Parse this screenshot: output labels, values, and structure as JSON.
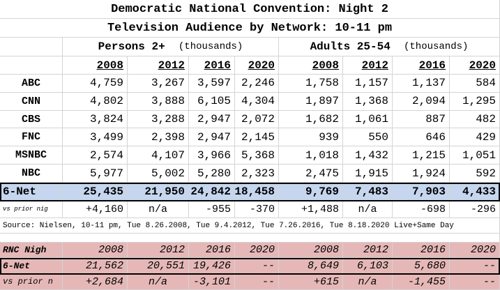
{
  "title1": "Democratic National Convention: Night 2",
  "title2": "Television Audience by Network: 10-11 pm",
  "groups": {
    "persons_label": "Persons 2+",
    "persons_units": "(thousands)",
    "adults_label": "Adults 25-54",
    "adults_units": "(thousands)"
  },
  "years": [
    "2008",
    "2012",
    "2016",
    "2020"
  ],
  "networks": [
    {
      "name": "ABC",
      "p": [
        "4,759",
        "3,267",
        "3,597",
        "2,246"
      ],
      "a": [
        "1,758",
        "1,157",
        "1,137",
        "584"
      ]
    },
    {
      "name": "CNN",
      "p": [
        "4,802",
        "3,888",
        "6,105",
        "4,304"
      ],
      "a": [
        "1,897",
        "1,368",
        "2,094",
        "1,295"
      ]
    },
    {
      "name": "CBS",
      "p": [
        "3,824",
        "3,288",
        "2,947",
        "2,072"
      ],
      "a": [
        "1,682",
        "1,061",
        "887",
        "482"
      ]
    },
    {
      "name": "FNC",
      "p": [
        "3,499",
        "2,398",
        "2,947",
        "2,145"
      ],
      "a": [
        "939",
        "550",
        "646",
        "429"
      ]
    },
    {
      "name": "MSNBC",
      "p": [
        "2,574",
        "4,107",
        "3,966",
        "5,368"
      ],
      "a": [
        "1,018",
        "1,432",
        "1,215",
        "1,051"
      ]
    },
    {
      "name": "NBC",
      "p": [
        "5,977",
        "5,002",
        "5,280",
        "2,323"
      ],
      "a": [
        "2,475",
        "1,915",
        "1,924",
        "592"
      ]
    }
  ],
  "total": {
    "name": "6-Net",
    "p": [
      "25,435",
      "21,950",
      "24,842",
      "18,458"
    ],
    "a": [
      "9,769",
      "7,483",
      "7,903",
      "4,433"
    ]
  },
  "prior": {
    "label": "vs prior nig",
    "p": [
      "+4,160",
      "n/a",
      "-955",
      "-370"
    ],
    "a": [
      "+1,488",
      "n/a",
      "-698",
      "-296"
    ]
  },
  "source": "Source: Nielsen, 10-11 pm, Tue 8.26.2008, Tue 9.4.2012, Tue 7.26.2016, Tue 8.18.2020 Live+Same Day",
  "rnc": {
    "header_label": "RNC Nigh",
    "years": [
      "2008",
      "2012",
      "2016",
      "2020"
    ],
    "total": {
      "name": "6-Net",
      "p": [
        "21,562",
        "20,551",
        "19,426",
        "--"
      ],
      "a": [
        "8,649",
        "6,103",
        "5,680",
        "--"
      ]
    },
    "prior": {
      "label": "vs prior n",
      "p": [
        "+2,684",
        "n/a",
        "-3,101",
        "--"
      ],
      "a": [
        "+615",
        "n/a",
        "-1,455",
        "--"
      ]
    }
  },
  "colors": {
    "total_row": "#c5d6ee",
    "rnc_rows": "#e5b8b7",
    "gridline": "#d4d4d4"
  }
}
